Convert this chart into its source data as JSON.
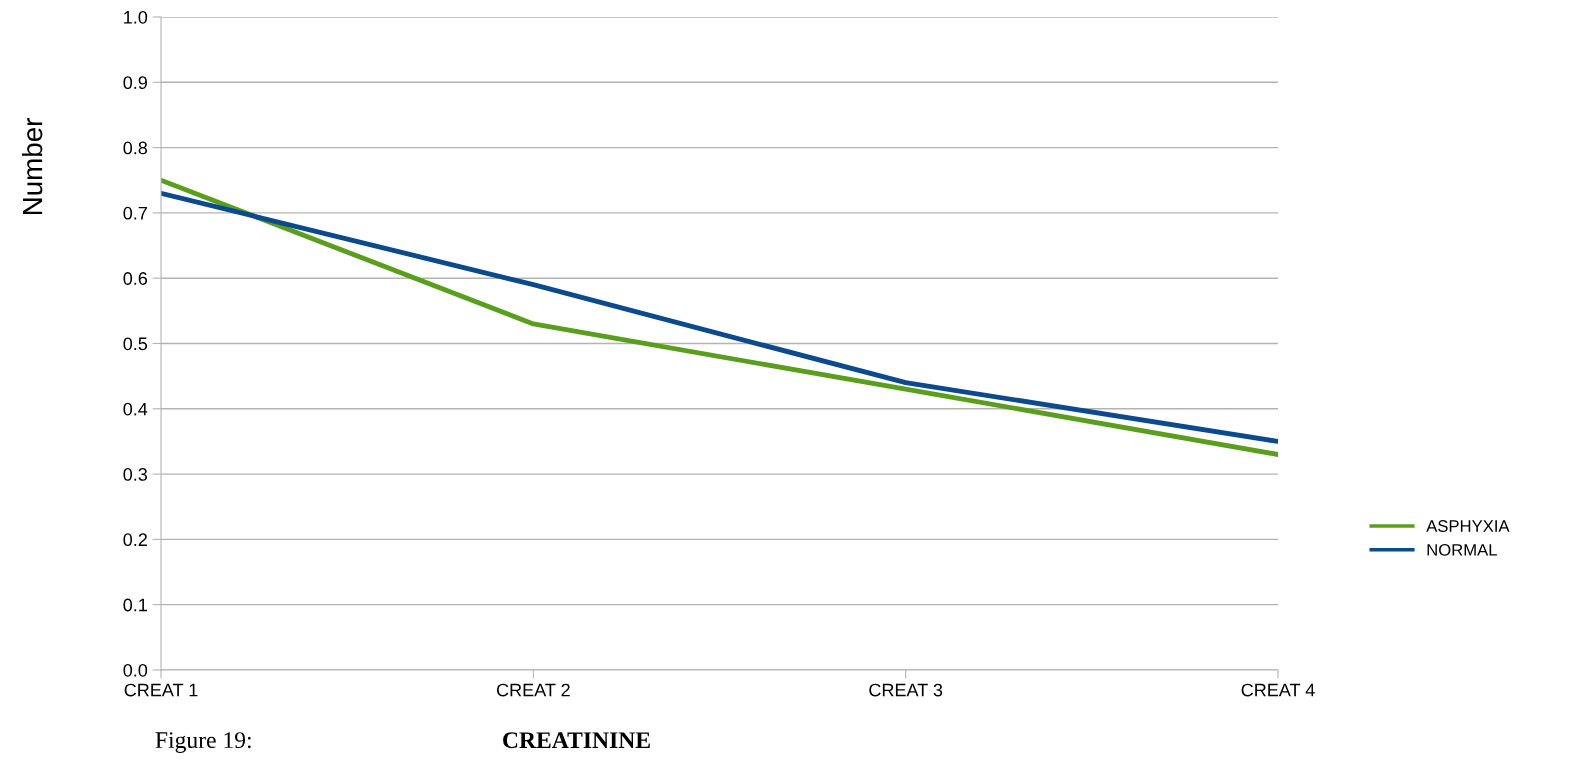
{
  "chart_data": {
    "type": "line",
    "ylabel": "Number",
    "categories": [
      "CREAT 1",
      "CREAT 2",
      "CREAT 3",
      "CREAT 4"
    ],
    "series": [
      {
        "name": "ASPHYXIA",
        "color": "#5a9e1e",
        "values": [
          0.75,
          0.53,
          0.43,
          0.33
        ]
      },
      {
        "name": "NORMAL",
        "color": "#0b4a8c",
        "values": [
          0.73,
          0.59,
          0.44,
          0.35
        ]
      }
    ],
    "ylim": [
      0,
      1
    ],
    "yticks": [
      {
        "value": 0,
        "label": "0.0"
      },
      {
        "value": 0.1,
        "label": "0.1"
      },
      {
        "value": 0.2,
        "label": "0.2"
      },
      {
        "value": 0.3,
        "label": "0.3"
      },
      {
        "value": 0.4,
        "label": "0.4"
      },
      {
        "value": 0.5,
        "label": "0.5"
      },
      {
        "value": 0.6,
        "label": "0.6"
      },
      {
        "value": 0.7,
        "label": "0.7"
      },
      {
        "value": 0.8,
        "label": "0.8"
      },
      {
        "value": 0.9,
        "label": "0.9"
      },
      {
        "value": 1,
        "label": "1.0"
      }
    ],
    "grid": "y",
    "legend": "right",
    "marker": "none",
    "line_style": "solid",
    "annotations": [
      "Figure 19:",
      "CREATININE"
    ]
  }
}
